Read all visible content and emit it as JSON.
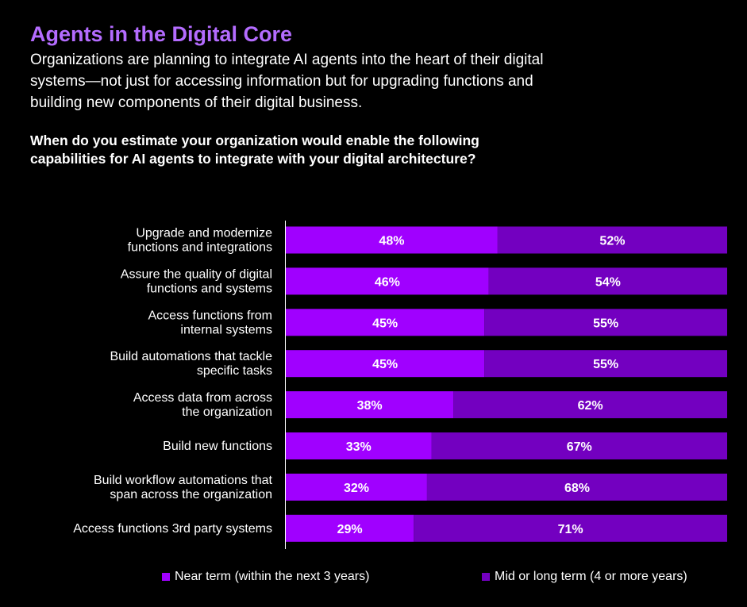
{
  "header": {
    "title": "Agents in the Digital Core",
    "subtitle": "Organizations are planning to integrate AI agents into the heart of their digital systems—not just for accessing information but for upgrading functions and building new components of their digital business.",
    "question": "When do you estimate your organization would enable the following capabilities for AI agents to integrate with your digital architecture?"
  },
  "colors": {
    "title": "#b46cff",
    "near_term": "#a000ff",
    "mid_long_term": "#7300c0",
    "background": "#000000",
    "axis": "#ffffff"
  },
  "chart_data": {
    "type": "bar",
    "orientation": "horizontal",
    "stacked": true,
    "categories": [
      [
        "Upgrade and modernize",
        "functions and integrations"
      ],
      [
        "Assure the quality of digital",
        "functions and systems"
      ],
      [
        "Access functions from",
        "internal systems"
      ],
      [
        "Build automations that tackle",
        "specific tasks"
      ],
      [
        "Access data from across",
        "the organization"
      ],
      [
        "Build new functions"
      ],
      [
        "Build workflow automations that",
        "span across the organization"
      ],
      [
        "Access functions 3rd party systems"
      ]
    ],
    "series": [
      {
        "name": "Near term (within the next 3 years)",
        "values": [
          48,
          46,
          45,
          45,
          38,
          33,
          32,
          29
        ],
        "labels": [
          "48%",
          "46%",
          "45%",
          "45%",
          "38%",
          "33%",
          "32%",
          "29%"
        ]
      },
      {
        "name": "Mid or long term (4 or more years)",
        "values": [
          52,
          54,
          55,
          55,
          62,
          67,
          68,
          71
        ],
        "labels": [
          "52%",
          "54%",
          "55%",
          "55%",
          "62%",
          "67%",
          "68%",
          "71%"
        ]
      }
    ],
    "xlim": [
      0,
      100
    ],
    "grid": false,
    "legend_position": "bottom"
  }
}
